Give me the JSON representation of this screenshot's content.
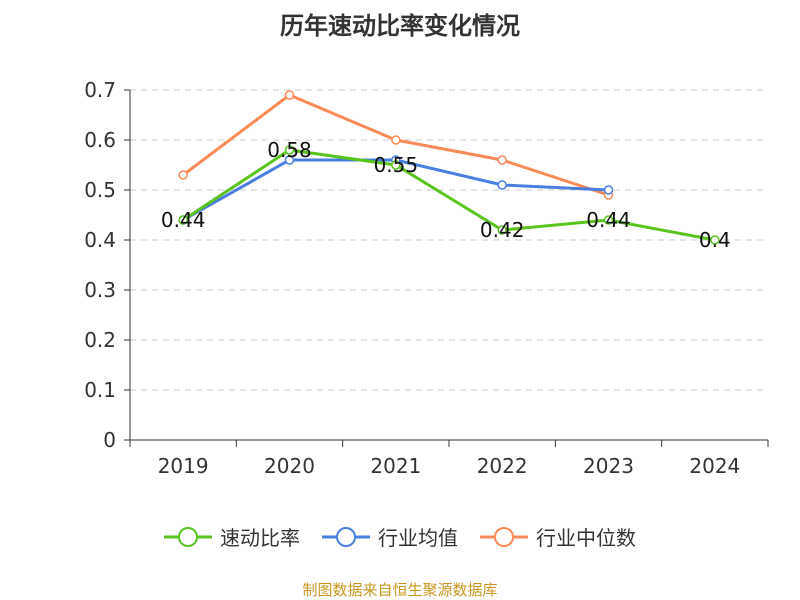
{
  "chart_data": {
    "type": "line",
    "title": "历年速动比率变化情况",
    "categories": [
      "2019",
      "2020",
      "2021",
      "2022",
      "2023",
      "2024"
    ],
    "ylim": [
      0,
      0.7
    ],
    "yticks": [
      "0",
      "0.1",
      "0.2",
      "0.3",
      "0.4",
      "0.5",
      "0.6",
      "0.7"
    ],
    "grid": true,
    "legend_position": "bottom",
    "series": [
      {
        "name": "速动比率",
        "color": "#5ac31e",
        "values": [
          0.44,
          0.58,
          0.55,
          0.42,
          0.44,
          0.4
        ],
        "labels": [
          "0.44",
          "0.58",
          "0.55",
          "0.42",
          "0.44",
          "0.4"
        ]
      },
      {
        "name": "行业均值",
        "color": "#4a7fe0",
        "values": [
          0.44,
          0.56,
          0.56,
          0.51,
          0.5,
          null
        ]
      },
      {
        "name": "行业中位数",
        "color": "#fa8a58",
        "values": [
          0.53,
          0.69,
          0.6,
          0.56,
          0.49,
          null
        ]
      }
    ]
  },
  "source": "制图数据来自恒生聚源数据库"
}
